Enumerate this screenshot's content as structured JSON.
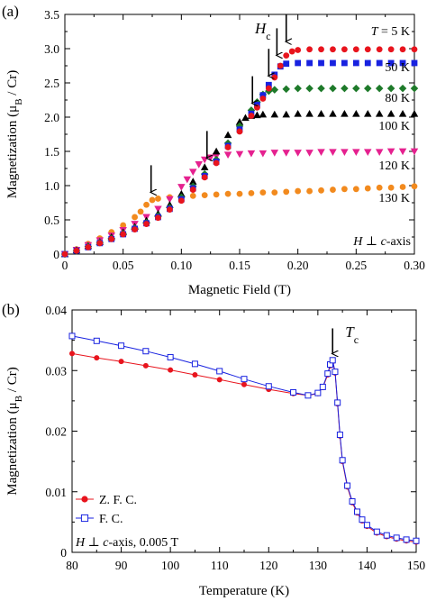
{
  "chart_data": [
    {
      "panel_label": "(a)",
      "type": "scatter",
      "xlabel": "Magnetic Field (T)",
      "ylabel": "Magnetization (μB / Cr)",
      "ylabel_main": "Magnetization (μ",
      "ylabel_sub": "B",
      "ylabel_end": " / Cr)",
      "xlim": [
        0,
        0.3
      ],
      "ylim": [
        0,
        3.5
      ],
      "xticks": [
        0,
        0.05,
        0.1,
        0.15,
        0.2,
        0.25,
        0.3
      ],
      "xtick_labels": [
        "0",
        "0.05",
        "0.10",
        "0.15",
        "0.20",
        "0.25",
        "0.30"
      ],
      "yticks": [
        0,
        0.5,
        1,
        1.5,
        2,
        2.5,
        3,
        3.5
      ],
      "ytick_labels": [
        "0",
        "0.5",
        "1.0",
        "1.5",
        "2.0",
        "2.5",
        "3.0",
        "3.5"
      ],
      "grid": false,
      "annotation_Hc": {
        "main": "H",
        "sub": "c"
      },
      "annotation_axis": "H ⊥ c-axis",
      "annotation_axis_parts": [
        "H",
        " ⊥ ",
        "c",
        "-axis"
      ],
      "arrows_x": [
        0.074,
        0.122,
        0.161,
        0.175,
        0.182,
        0.19
      ],
      "arrow_targets_y": [
        0.85,
        1.35,
        2.15,
        2.55,
        2.85,
        3.05
      ],
      "series": [
        {
          "name": "T = 5 K",
          "label_parts": [
            "T",
            " = 5 K"
          ],
          "color": "#e8141d",
          "marker": "circle",
          "x": [
            0,
            0.01,
            0.02,
            0.03,
            0.04,
            0.05,
            0.06,
            0.07,
            0.08,
            0.09,
            0.1,
            0.11,
            0.12,
            0.13,
            0.14,
            0.15,
            0.16,
            0.165,
            0.17,
            0.175,
            0.18,
            0.185,
            0.19,
            0.195,
            0.2,
            0.21,
            0.22,
            0.23,
            0.24,
            0.25,
            0.26,
            0.27,
            0.28,
            0.29,
            0.3
          ],
          "y": [
            0,
            0.05,
            0.1,
            0.16,
            0.22,
            0.29,
            0.36,
            0.44,
            0.53,
            0.65,
            0.78,
            0.94,
            1.12,
            1.33,
            1.56,
            1.79,
            2.02,
            2.14,
            2.27,
            2.42,
            2.58,
            2.75,
            2.9,
            2.96,
            2.98,
            2.99,
            2.99,
            2.99,
            2.99,
            2.99,
            2.99,
            2.99,
            2.99,
            2.99,
            2.99
          ]
        },
        {
          "name": "50 K",
          "color": "#1822e0",
          "marker": "square",
          "x": [
            0,
            0.01,
            0.02,
            0.03,
            0.04,
            0.05,
            0.06,
            0.07,
            0.08,
            0.09,
            0.1,
            0.11,
            0.12,
            0.13,
            0.14,
            0.15,
            0.16,
            0.165,
            0.17,
            0.175,
            0.18,
            0.185,
            0.19,
            0.2,
            0.21,
            0.22,
            0.23,
            0.24,
            0.25,
            0.26,
            0.27,
            0.28,
            0.29,
            0.3
          ],
          "y": [
            0,
            0.05,
            0.1,
            0.16,
            0.22,
            0.29,
            0.37,
            0.45,
            0.54,
            0.66,
            0.8,
            0.96,
            1.14,
            1.35,
            1.58,
            1.82,
            2.05,
            2.18,
            2.32,
            2.47,
            2.62,
            2.74,
            2.78,
            2.79,
            2.79,
            2.79,
            2.79,
            2.79,
            2.79,
            2.79,
            2.79,
            2.79,
            2.79,
            2.79
          ]
        },
        {
          "name": "80 K",
          "color": "#1e7a2a",
          "marker": "diamond",
          "x": [
            0,
            0.01,
            0.02,
            0.03,
            0.04,
            0.05,
            0.06,
            0.07,
            0.08,
            0.09,
            0.1,
            0.11,
            0.12,
            0.13,
            0.14,
            0.15,
            0.16,
            0.165,
            0.17,
            0.175,
            0.18,
            0.19,
            0.2,
            0.21,
            0.22,
            0.23,
            0.24,
            0.25,
            0.26,
            0.27,
            0.28,
            0.29,
            0.3
          ],
          "y": [
            0,
            0.05,
            0.11,
            0.17,
            0.23,
            0.3,
            0.38,
            0.46,
            0.56,
            0.68,
            0.83,
            0.99,
            1.17,
            1.38,
            1.62,
            1.87,
            2.1,
            2.22,
            2.33,
            2.38,
            2.4,
            2.41,
            2.42,
            2.42,
            2.42,
            2.42,
            2.42,
            2.42,
            2.42,
            2.42,
            2.42,
            2.42,
            2.42
          ]
        },
        {
          "name": "100 K",
          "color": "#000000",
          "marker": "triangle",
          "x": [
            0,
            0.01,
            0.02,
            0.03,
            0.04,
            0.05,
            0.06,
            0.07,
            0.08,
            0.09,
            0.1,
            0.11,
            0.12,
            0.13,
            0.14,
            0.15,
            0.155,
            0.16,
            0.165,
            0.17,
            0.18,
            0.19,
            0.2,
            0.21,
            0.22,
            0.23,
            0.24,
            0.25,
            0.26,
            0.27,
            0.28,
            0.29,
            0.3
          ],
          "y": [
            0,
            0.06,
            0.12,
            0.18,
            0.25,
            0.32,
            0.4,
            0.49,
            0.59,
            0.72,
            0.88,
            1.06,
            1.27,
            1.5,
            1.74,
            1.93,
            1.99,
            2.02,
            2.03,
            2.04,
            2.04,
            2.04,
            2.05,
            2.05,
            2.05,
            2.05,
            2.05,
            2.05,
            2.05,
            2.05,
            2.05,
            2.05,
            2.05
          ]
        },
        {
          "name": "120 K",
          "color": "#e5218f",
          "marker": "triangle-down",
          "x": [
            0,
            0.01,
            0.02,
            0.03,
            0.04,
            0.05,
            0.06,
            0.07,
            0.08,
            0.09,
            0.1,
            0.105,
            0.11,
            0.115,
            0.12,
            0.125,
            0.13,
            0.14,
            0.15,
            0.16,
            0.17,
            0.18,
            0.19,
            0.2,
            0.21,
            0.22,
            0.23,
            0.24,
            0.25,
            0.26,
            0.27,
            0.28,
            0.29,
            0.3
          ],
          "y": [
            0,
            0.06,
            0.13,
            0.2,
            0.27,
            0.35,
            0.44,
            0.54,
            0.66,
            0.8,
            0.98,
            1.09,
            1.2,
            1.31,
            1.38,
            1.41,
            1.43,
            1.45,
            1.46,
            1.47,
            1.47,
            1.48,
            1.48,
            1.48,
            1.48,
            1.49,
            1.49,
            1.49,
            1.49,
            1.49,
            1.49,
            1.5,
            1.5,
            1.5
          ]
        },
        {
          "name": "130 K",
          "color": "#f28a1e",
          "marker": "circle",
          "x": [
            0,
            0.01,
            0.02,
            0.03,
            0.04,
            0.05,
            0.06,
            0.065,
            0.07,
            0.075,
            0.08,
            0.09,
            0.1,
            0.11,
            0.12,
            0.13,
            0.14,
            0.15,
            0.16,
            0.17,
            0.18,
            0.19,
            0.2,
            0.21,
            0.22,
            0.23,
            0.24,
            0.25,
            0.26,
            0.27,
            0.28,
            0.29,
            0.3
          ],
          "y": [
            0,
            0.07,
            0.15,
            0.23,
            0.32,
            0.42,
            0.54,
            0.62,
            0.72,
            0.79,
            0.81,
            0.83,
            0.84,
            0.85,
            0.86,
            0.87,
            0.88,
            0.88,
            0.89,
            0.9,
            0.9,
            0.91,
            0.92,
            0.92,
            0.93,
            0.94,
            0.95,
            0.95,
            0.96,
            0.97,
            0.97,
            0.98,
            0.99
          ]
        }
      ]
    },
    {
      "panel_label": "(b)",
      "type": "line",
      "xlabel": "Temperature (K)",
      "ylabel": "Magnetization (μB / Cr)",
      "ylabel_main": "Magnetization (μ",
      "ylabel_sub": "B",
      "ylabel_end": " / Cr)",
      "xlim": [
        80,
        150
      ],
      "ylim": [
        0,
        0.04
      ],
      "xticks": [
        80,
        90,
        100,
        110,
        120,
        130,
        140,
        150
      ],
      "xtick_labels": [
        "80",
        "90",
        "100",
        "110",
        "120",
        "130",
        "140",
        "150"
      ],
      "yticks": [
        0,
        0.01,
        0.02,
        0.03,
        0.04
      ],
      "ytick_labels": [
        "0",
        "0.01",
        "0.02",
        "0.03",
        "0.04"
      ],
      "grid": false,
      "legend_position": "bottom-left",
      "annotation_Tc": {
        "main": "T",
        "sub": "c"
      },
      "annotation_field": "H ⊥ c-axis, 0.005 T",
      "annotation_field_parts": [
        "H",
        " ⊥ ",
        "c",
        "-axis, 0.005 T"
      ],
      "arrow_x": 133,
      "arrow_target_y": 0.0322,
      "series": [
        {
          "name": "Z. F. C.",
          "color": "#e8141d",
          "marker": "circle-filled",
          "x": [
            80,
            85,
            90,
            95,
            100,
            105,
            110,
            115,
            120,
            125,
            128,
            130,
            131,
            132,
            132.5,
            133,
            133.5,
            134,
            134.5,
            135,
            136,
            137,
            138,
            139,
            140,
            142,
            144,
            146,
            148,
            150
          ],
          "y": [
            0.0328,
            0.0321,
            0.0315,
            0.0308,
            0.0301,
            0.0293,
            0.0285,
            0.0277,
            0.0269,
            0.0262,
            0.0259,
            0.0262,
            0.0272,
            0.0293,
            0.0308,
            0.0315,
            0.0296,
            0.0245,
            0.0192,
            0.015,
            0.0108,
            0.0082,
            0.0065,
            0.0052,
            0.0043,
            0.0032,
            0.0026,
            0.0022,
            0.0019,
            0.0017
          ]
        },
        {
          "name": "F. C.",
          "color": "#1822e0",
          "marker": "square-open",
          "x": [
            80,
            85,
            90,
            95,
            100,
            105,
            110,
            115,
            120,
            125,
            128,
            130,
            131,
            132,
            132.5,
            133,
            133.5,
            134,
            134.5,
            135,
            136,
            137,
            138,
            139,
            140,
            142,
            144,
            146,
            148,
            150
          ],
          "y": [
            0.0357,
            0.0349,
            0.0341,
            0.0332,
            0.0322,
            0.0311,
            0.0299,
            0.0286,
            0.0274,
            0.0264,
            0.0259,
            0.0263,
            0.0273,
            0.0295,
            0.031,
            0.0317,
            0.0298,
            0.0247,
            0.0194,
            0.0152,
            0.011,
            0.0084,
            0.0067,
            0.0054,
            0.0045,
            0.0034,
            0.0028,
            0.0024,
            0.0021,
            0.0019
          ]
        }
      ]
    }
  ]
}
